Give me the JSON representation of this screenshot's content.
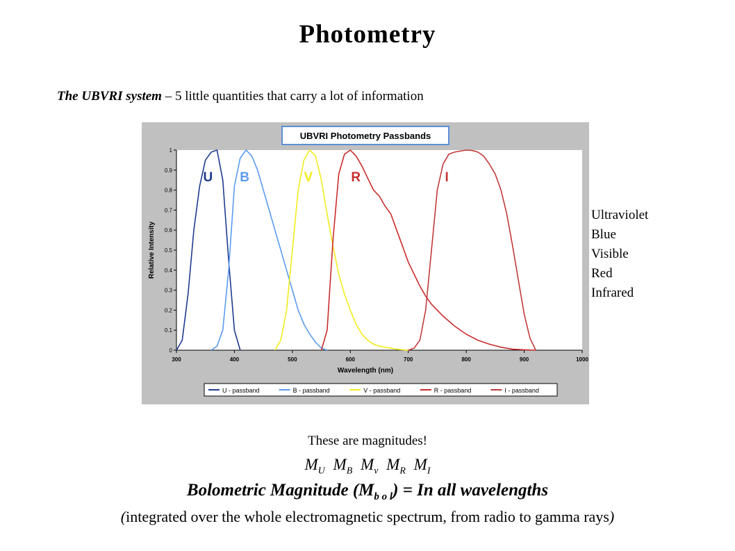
{
  "slide": {
    "title": "Photometry",
    "subtitle_strong": "The UBVRI system",
    "subtitle_rest": " – 5 little quantities that carry a lot of information",
    "band_names": [
      "Ultraviolet",
      "Blue",
      "Visible",
      "Red",
      "Infrared"
    ],
    "note": "These are magnitudes!",
    "magnitudes": [
      {
        "base": "M",
        "sub": "U"
      },
      {
        "base": "M",
        "sub": "B"
      },
      {
        "base": "M",
        "sub": "v"
      },
      {
        "base": "M",
        "sub": "R"
      },
      {
        "base": "M",
        "sub": "I"
      }
    ],
    "bolometric_pre": "Bolometric Magnitude (M",
    "bolometric_sub": "b o l",
    "bolometric_post": ") = In all wavelengths",
    "integrated_open": "(",
    "integrated": "integrated over the whole electromagnetic spectrum, from radio to gamma rays",
    "integrated_close": ")"
  },
  "chart_data": {
    "type": "line",
    "title": "UBVRI Photometry Passbands",
    "xlabel": "Wavelength (nm)",
    "ylabel": "Relative Intensity",
    "xlim": [
      300,
      1000
    ],
    "ylim": [
      0,
      1
    ],
    "xticks": [
      300,
      400,
      500,
      600,
      700,
      800,
      900,
      1000
    ],
    "yticks": [
      0,
      0.1,
      0.2,
      0.3,
      0.4,
      0.5,
      0.6,
      0.7,
      0.8,
      0.9,
      1
    ],
    "grid": false,
    "legend_position": "bottom",
    "series": [
      {
        "name": "U - passband",
        "label": "U",
        "color": "#1f3a8f",
        "x": [
          300,
          310,
          320,
          330,
          340,
          350,
          360,
          370,
          380,
          390,
          400,
          410
        ],
        "y": [
          0.0,
          0.05,
          0.28,
          0.6,
          0.82,
          0.95,
          0.99,
          1.0,
          0.85,
          0.45,
          0.1,
          0.0
        ]
      },
      {
        "name": "B - passband",
        "label": "B",
        "color": "#5b9bef",
        "x": [
          360,
          370,
          380,
          390,
          400,
          410,
          420,
          430,
          440,
          450,
          460,
          470,
          480,
          490,
          500,
          510,
          520,
          530,
          540,
          550,
          560
        ],
        "y": [
          0.0,
          0.02,
          0.1,
          0.4,
          0.82,
          0.96,
          1.0,
          0.97,
          0.9,
          0.8,
          0.7,
          0.6,
          0.5,
          0.4,
          0.3,
          0.2,
          0.13,
          0.08,
          0.04,
          0.01,
          0.0
        ]
      },
      {
        "name": "V - passband",
        "label": "V",
        "color": "#f2ec1c",
        "x": [
          470,
          480,
          490,
          500,
          510,
          520,
          530,
          540,
          550,
          560,
          570,
          580,
          590,
          600,
          610,
          620,
          630,
          640,
          650,
          660,
          670,
          680,
          690,
          700
        ],
        "y": [
          0.0,
          0.05,
          0.2,
          0.5,
          0.8,
          0.95,
          1.0,
          0.97,
          0.85,
          0.68,
          0.52,
          0.38,
          0.28,
          0.2,
          0.13,
          0.08,
          0.05,
          0.03,
          0.02,
          0.015,
          0.01,
          0.005,
          0.002,
          0.0
        ]
      },
      {
        "name": "R - passband",
        "label": "R",
        "color": "#c92c2c",
        "x": [
          550,
          560,
          570,
          580,
          590,
          600,
          610,
          620,
          630,
          640,
          650,
          660,
          670,
          680,
          690,
          700,
          710,
          720,
          730,
          740,
          750,
          760,
          780,
          800,
          820,
          840,
          860,
          880,
          900,
          920
        ],
        "y": [
          0.0,
          0.1,
          0.55,
          0.88,
          0.98,
          1.0,
          0.97,
          0.92,
          0.86,
          0.8,
          0.77,
          0.72,
          0.68,
          0.6,
          0.52,
          0.44,
          0.38,
          0.32,
          0.27,
          0.23,
          0.2,
          0.17,
          0.12,
          0.08,
          0.05,
          0.03,
          0.015,
          0.005,
          0.002,
          0.0
        ]
      },
      {
        "name": "I - passband",
        "label": "I",
        "color": "#c23a3a",
        "x": [
          700,
          710,
          720,
          730,
          740,
          750,
          760,
          770,
          780,
          790,
          800,
          810,
          820,
          830,
          840,
          850,
          860,
          870,
          880,
          890,
          900,
          910,
          920
        ],
        "y": [
          0.0,
          0.01,
          0.05,
          0.2,
          0.5,
          0.8,
          0.93,
          0.98,
          0.99,
          0.995,
          1.0,
          0.998,
          0.99,
          0.97,
          0.93,
          0.88,
          0.8,
          0.68,
          0.52,
          0.35,
          0.18,
          0.06,
          0.0
        ]
      }
    ]
  }
}
